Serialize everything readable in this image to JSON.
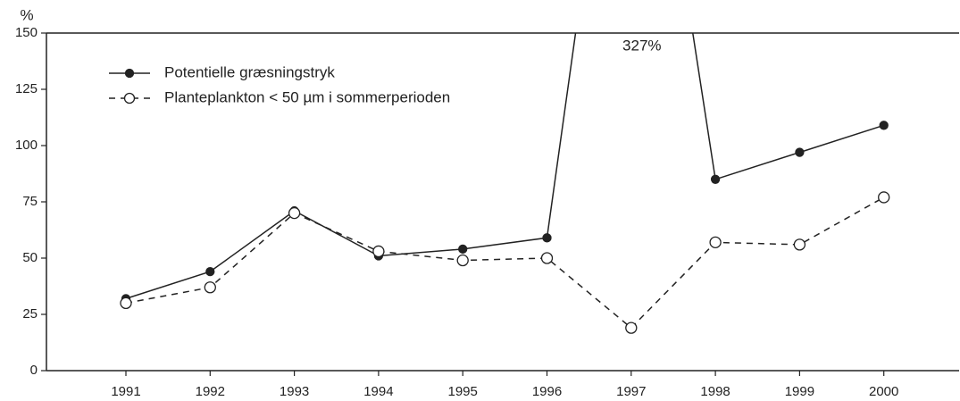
{
  "chart_data": {
    "type": "line",
    "y_label": "%",
    "categories": [
      "1991",
      "1992",
      "1993",
      "1994",
      "1995",
      "1996",
      "1997",
      "1998",
      "1999",
      "2000"
    ],
    "series": [
      {
        "name": "Potentielle græsningstryk",
        "color": "#222222",
        "style": "solid",
        "marker": "filled",
        "values": [
          32,
          44,
          71,
          51,
          54,
          59,
          327,
          85,
          97,
          109
        ],
        "value_labels": [
          null,
          null,
          null,
          null,
          null,
          null,
          "327%",
          null,
          null,
          null
        ]
      },
      {
        "name": "Planteplankton < 50 µm i sommerperioden",
        "color": "#222222",
        "style": "dashed",
        "marker": "open",
        "values": [
          30,
          37,
          70,
          53,
          49,
          50,
          19,
          57,
          56,
          77
        ]
      }
    ],
    "ylim": [
      0,
      150
    ],
    "yticks": [
      0,
      25,
      50,
      75,
      100,
      125,
      150
    ],
    "grid": false,
    "legend": "upper left"
  }
}
